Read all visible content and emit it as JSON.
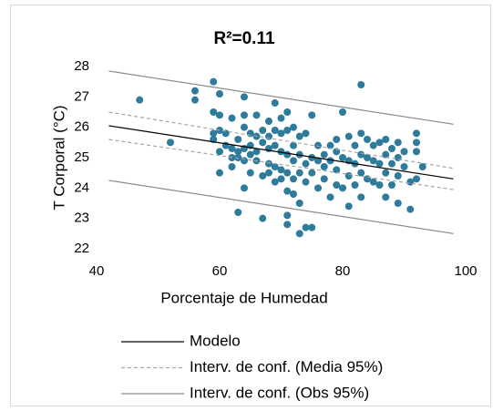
{
  "chart_data": {
    "type": "scatter",
    "title": "R²=0.11",
    "x_label": "Porcentaje de Humedad",
    "y_label": "T Corporal (°C)",
    "xlim": [
      40,
      100
    ],
    "ylim": [
      22,
      28
    ],
    "xticks": [
      40,
      60,
      80,
      100
    ],
    "yticks": [
      22,
      23,
      24,
      25,
      26,
      27,
      28
    ],
    "grid": false,
    "color": "#2e7b9b",
    "x": [
      47,
      52,
      56,
      56,
      59,
      59,
      59,
      59,
      60,
      60,
      60,
      60,
      60,
      61,
      61,
      62,
      62,
      62,
      62,
      63,
      63,
      63,
      63,
      64,
      64,
      64,
      64,
      64,
      64,
      65,
      65,
      65,
      65,
      66,
      66,
      66,
      66,
      67,
      67,
      67,
      67,
      68,
      68,
      68,
      68,
      68,
      69,
      69,
      69,
      69,
      69,
      70,
      70,
      70,
      70,
      70,
      71,
      71,
      71,
      71,
      71,
      71,
      71,
      72,
      72,
      72,
      72,
      72,
      73,
      73,
      73,
      73,
      73,
      74,
      74,
      74,
      74,
      75,
      75,
      75,
      75,
      76,
      76,
      76,
      77,
      77,
      77,
      78,
      78,
      78,
      79,
      79,
      79,
      79,
      80,
      80,
      80,
      81,
      81,
      81,
      81,
      82,
      82,
      82,
      83,
      83,
      83,
      83,
      83,
      84,
      84,
      84,
      85,
      85,
      85,
      86,
      86,
      86,
      87,
      87,
      87,
      87,
      88,
      88,
      88,
      89,
      89,
      89,
      89,
      90,
      90,
      91,
      91,
      92,
      92,
      92,
      92,
      93
    ],
    "values": [
      26.9,
      25.5,
      27.2,
      26.9,
      27.5,
      26.5,
      25.8,
      25.6,
      27.1,
      26.4,
      25.9,
      25.2,
      24.5,
      25.8,
      25.4,
      26.3,
      25.3,
      25.0,
      24.7,
      25.6,
      25.2,
      23.2,
      25.0,
      27.0,
      26.4,
      26.0,
      25.3,
      24.9,
      24.0,
      25.8,
      25.4,
      25.1,
      24.5,
      26.4,
      25.7,
      25.2,
      24.9,
      25.9,
      25.5,
      24.4,
      23.0,
      26.2,
      25.7,
      25.3,
      24.8,
      24.5,
      26.8,
      25.9,
      25.4,
      24.7,
      24.2,
      26.3,
      25.8,
      25.2,
      24.6,
      24.3,
      26.5,
      25.9,
      25.1,
      24.5,
      23.9,
      23.1,
      22.8,
      26.0,
      25.4,
      24.9,
      24.3,
      23.8,
      25.7,
      25.1,
      24.5,
      23.5,
      22.5,
      25.8,
      24.8,
      24.2,
      22.7,
      26.4,
      25.0,
      24.5,
      22.7,
      25.4,
      24.9,
      24.0,
      25.1,
      24.7,
      24.3,
      25.4,
      24.9,
      23.7,
      25.6,
      25.2,
      24.6,
      24.1,
      26.5,
      25.0,
      24.0,
      25.7,
      24.9,
      24.4,
      23.4,
      25.4,
      24.8,
      24.1,
      27.4,
      25.8,
      25.1,
      24.5,
      23.7,
      25.6,
      25.0,
      24.3,
      25.4,
      24.9,
      24.2,
      25.5,
      24.8,
      24.1,
      25.6,
      25.1,
      24.5,
      23.7,
      25.3,
      24.8,
      24.1,
      25.5,
      25.0,
      24.4,
      23.5,
      25.2,
      24.7,
      24.2,
      23.3,
      25.8,
      25.5,
      25.2,
      24.3,
      24.7
    ],
    "lines": [
      {
        "name": "Modelo",
        "color": "#000000",
        "dash": false,
        "x": [
          42,
          98
        ],
        "values": [
          26.05,
          24.3
        ]
      },
      {
        "name": "Interv. de conf. (Media 95%)",
        "color": "#a6a6a6",
        "dash": true,
        "x": [
          42,
          98
        ],
        "values": [
          26.5,
          24.65
        ]
      },
      {
        "color": "#a6a6a6",
        "dash": true,
        "x": [
          42,
          98
        ],
        "values": [
          25.6,
          23.95
        ]
      },
      {
        "name": "Interv. de conf. (Obs 95%)",
        "color": "#8c8c8c",
        "dash": false,
        "x": [
          42,
          98
        ],
        "values": [
          27.85,
          26.1
        ]
      },
      {
        "color": "#8c8c8c",
        "dash": false,
        "x": [
          42,
          98
        ],
        "values": [
          24.25,
          22.5
        ]
      }
    ]
  }
}
